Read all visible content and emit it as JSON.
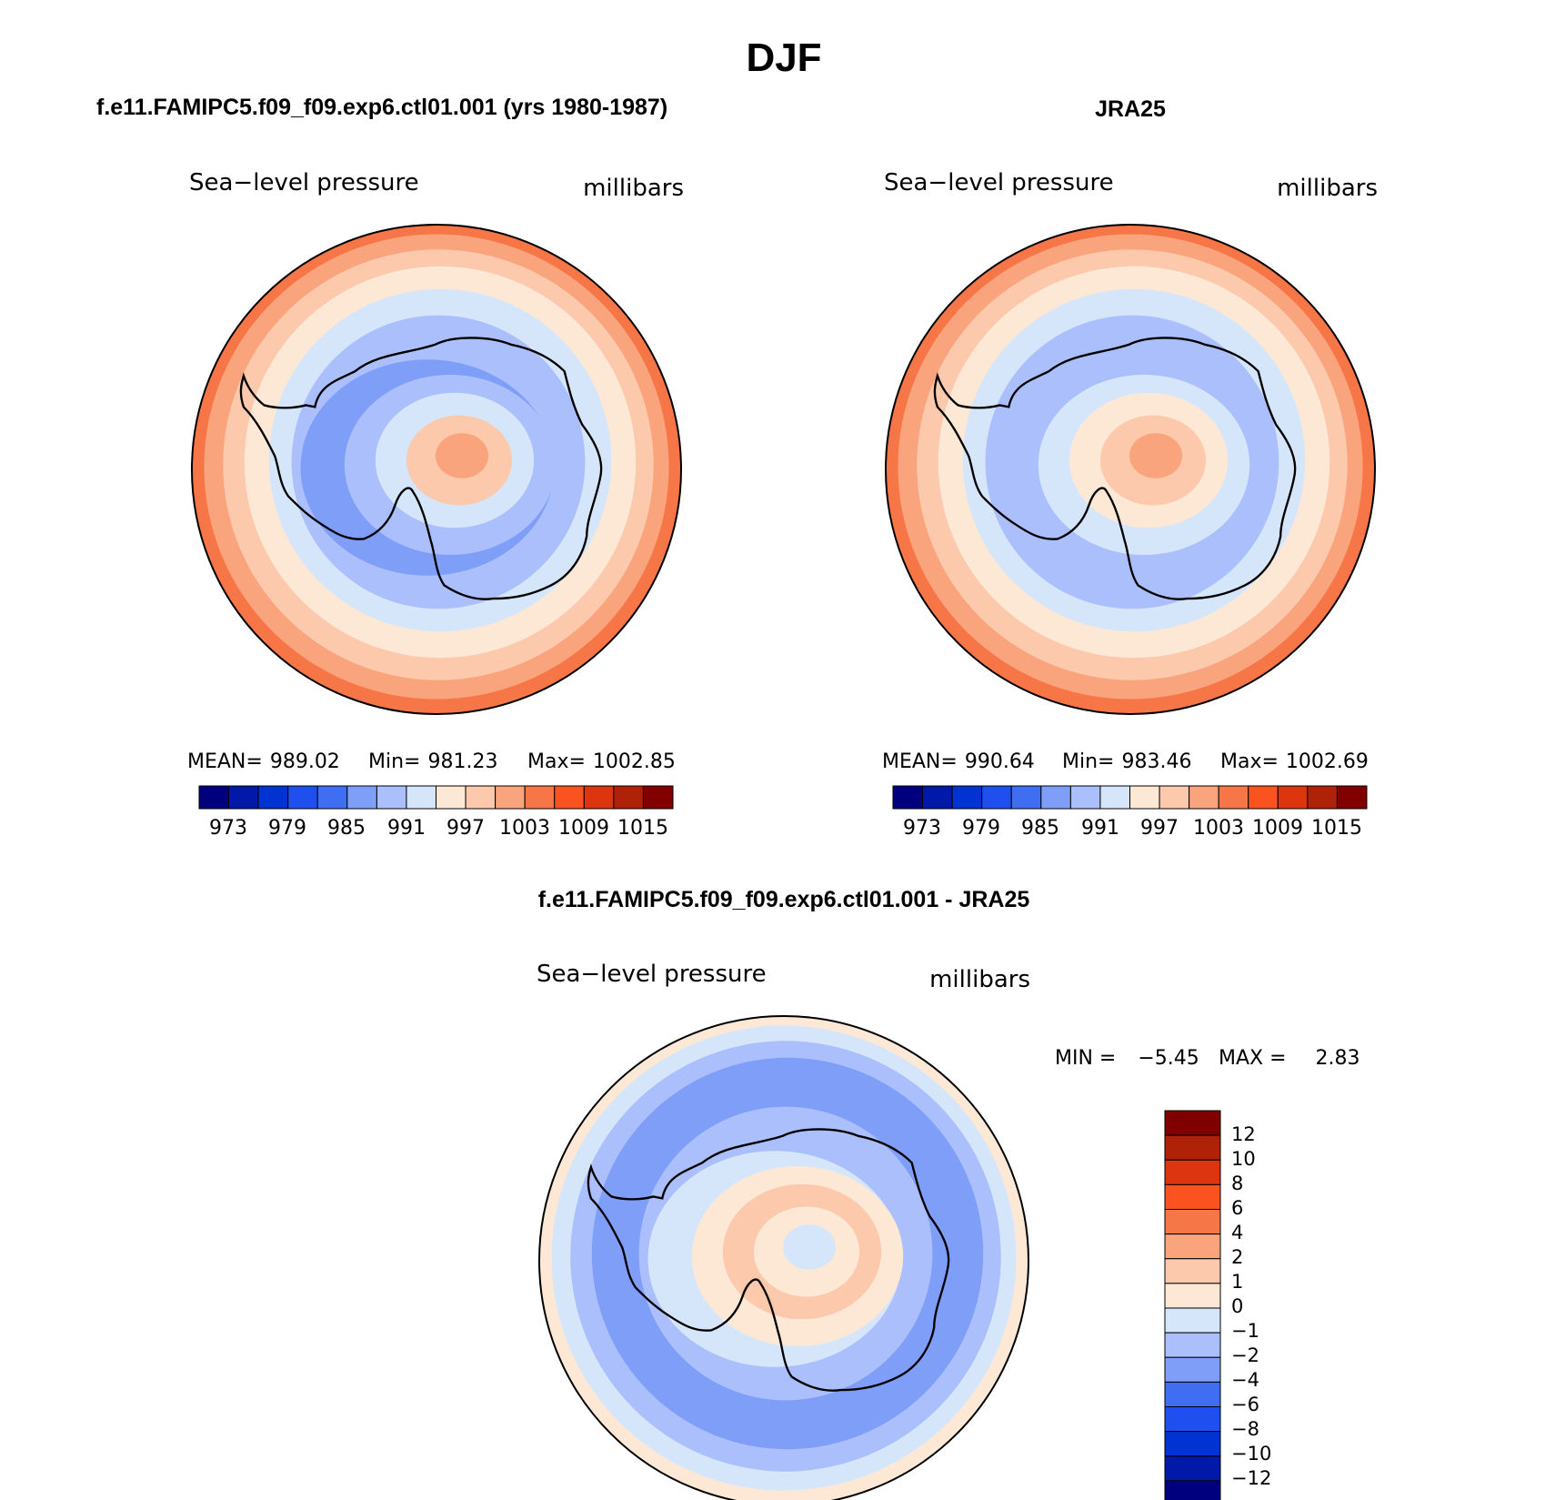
{
  "title": "DJF",
  "colors": {
    "abs_palette": [
      "#00007f",
      "#0019a8",
      "#0033d1",
      "#1f50ef",
      "#3f6ef2",
      "#7f9ef8",
      "#aabffb",
      "#d6e6fa",
      "#fde8d6",
      "#fcc9ad",
      "#f9a47c",
      "#f77647",
      "#fa5320",
      "#dd3510",
      "#b02207",
      "#800000"
    ],
    "diff_palette": [
      "#00007f",
      "#0019a8",
      "#0033d1",
      "#1f50ef",
      "#3f6ef2",
      "#7f9ef8",
      "#aabffb",
      "#d6e6fa",
      "#fde8d6",
      "#fcc9ad",
      "#f9a47c",
      "#f77647",
      "#fa5320",
      "#dd3510",
      "#b02207",
      "#800000"
    ],
    "coast": "#000000"
  },
  "panels": [
    {
      "id": "model",
      "heading": "f.e11.FAMIPC5.f09_f09.exp6.ctl01.001 (yrs 1980-1987)",
      "variable": "Sea−level pressure",
      "units": "millibars",
      "stats": {
        "mean_label": "MEAN=",
        "mean": "989.02",
        "min_label": "Min=",
        "min": "981.23",
        "max_label": "Max=",
        "max": "1002.85"
      },
      "colorbar_labels": [
        "973",
        "979",
        "985",
        "991",
        "997",
        "1003",
        "1009",
        "1015"
      ],
      "field": {
        "rings": [
          1002,
          999,
          995,
          992,
          988,
          985,
          982,
          985,
          990,
          994,
          997
        ]
      }
    },
    {
      "id": "obs",
      "heading": "JRA25",
      "variable": "Sea−level pressure",
      "units": "millibars",
      "stats": {
        "mean_label": "MEAN=",
        "mean": "990.64",
        "min_label": "Min=",
        "min": "983.46",
        "max_label": "Max=",
        "max": "1002.69"
      },
      "colorbar_labels": [
        "973",
        "979",
        "985",
        "991",
        "997",
        "1003",
        "1009",
        "1015"
      ],
      "field": {
        "rings": [
          1002,
          999,
          995,
          993,
          990,
          987,
          985,
          988,
          993,
          996,
          998
        ]
      }
    },
    {
      "id": "diff",
      "heading": "f.e11.FAMIPC5.f09_f09.exp6.ctl01.001 - JRA25",
      "variable": "Sea−level pressure",
      "units": "millibars",
      "stats": {
        "min_label": "MIN =",
        "min": "−5.45",
        "max_label": "MAX =",
        "max": "2.83"
      },
      "colorbar_labels": [
        "12",
        "10",
        "8",
        "6",
        "4",
        "2",
        "1",
        "0",
        "−1",
        "−2",
        "−4",
        "−6",
        "−8",
        "−10",
        "−12"
      ],
      "field": {
        "rings": [
          0.5,
          -0.5,
          -1.5,
          -2.5,
          -3,
          -1.5,
          -0.5,
          0.5,
          1.5,
          0.5,
          -0.5
        ]
      }
    }
  ]
}
